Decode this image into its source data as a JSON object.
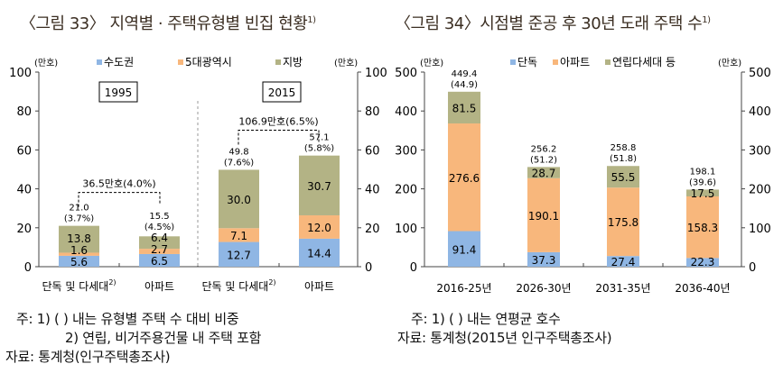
{
  "titles": [
    {
      "text": "〈그림 33〉 지역별 · 주택유형별 빈집 현황",
      "sup": "1)"
    },
    {
      "text": "〈그림 34〉시점별 준공 후 30년 도래 주택 수",
      "sup": "1)"
    }
  ],
  "colors": {
    "blue": "#8fb6e4",
    "orange": "#f8b77c",
    "olive": "#b3b385"
  },
  "chart_data": [
    {
      "type": "bar",
      "stacked": true,
      "unit_left": "(만호)",
      "unit_right": "(만호)",
      "ylim": [
        0,
        100
      ],
      "yticks": [
        0,
        20,
        40,
        60,
        80,
        100
      ],
      "categories": [
        "단독 및 다세대",
        "아파트",
        "단독 및 다세대",
        "아파트"
      ],
      "category_sup": [
        "2)",
        "",
        "2)",
        ""
      ],
      "groups": [
        "1995",
        "2015"
      ],
      "series": [
        {
          "name": "수도권",
          "color": "blue",
          "values": [
            5.6,
            6.5,
            12.7,
            14.4
          ]
        },
        {
          "name": "5대광역시",
          "color": "orange",
          "values": [
            1.6,
            2.7,
            7.1,
            12.0
          ]
        },
        {
          "name": "지방",
          "color": "olive",
          "values": [
            13.8,
            6.4,
            30.0,
            30.7
          ]
        }
      ],
      "totals": [
        "21.0",
        "15.5",
        "49.8",
        "57.1"
      ],
      "shares": [
        "(3.7%)",
        "(4.5%)",
        "(7.6%)",
        "(5.8%)"
      ],
      "brackets": [
        "36.5만호(4.0%)",
        "106.9만호(6.5%)"
      ],
      "legend": "top"
    },
    {
      "type": "bar",
      "stacked": true,
      "unit_left": "(만호)",
      "unit_right": "(만호)",
      "ylim": [
        0,
        500
      ],
      "yticks": [
        0,
        100,
        200,
        300,
        400,
        500
      ],
      "categories": [
        "2016-25년",
        "2026-30년",
        "2031-35년",
        "2036-40년"
      ],
      "series": [
        {
          "name": "단독",
          "color": "blue",
          "values": [
            91.4,
            37.3,
            27.4,
            22.3
          ]
        },
        {
          "name": "아파트",
          "color": "orange",
          "values": [
            276.6,
            190.1,
            175.8,
            158.3
          ]
        },
        {
          "name": "연립다세대 등",
          "color": "olive",
          "values": [
            81.5,
            28.7,
            55.5,
            17.5
          ]
        }
      ],
      "totals": [
        "449.4",
        "256.2",
        "258.8",
        "198.1"
      ],
      "shares": [
        "(44.9)",
        "(51.2)",
        "(51.8)",
        "(39.6)"
      ],
      "legend": "top"
    }
  ],
  "notes_left": [
    "주:  1) (   ) 내는 유형별 주택 수 대비 비중",
    "2) 연립, 비거주용건물 내 주택 포함",
    "자료:  통계청(인구주택총조사)"
  ],
  "notes_right": [
    "주:  1) (   ) 내는 연평균 호수",
    "자료:  통계청(2015년 인구주택총조사)"
  ]
}
